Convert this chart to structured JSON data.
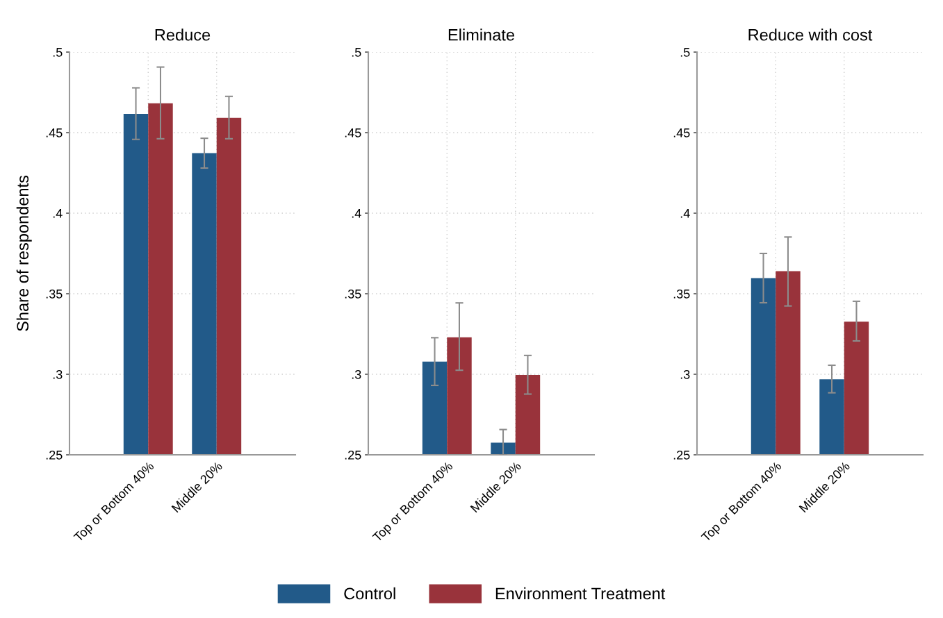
{
  "chart_data": [
    {
      "type": "bar",
      "title": "Reduce",
      "ylabel": "Share of respondents",
      "categories": [
        "Top or Bottom 40%",
        "Middle 20%"
      ],
      "ylim": [
        0.25,
        0.5
      ],
      "yticks": [
        {
          "value": 0.25,
          "label": ".25"
        },
        {
          "value": 0.3,
          "label": ".3"
        },
        {
          "value": 0.35,
          "label": ".35"
        },
        {
          "value": 0.4,
          "label": ".4"
        },
        {
          "value": 0.45,
          "label": ".45"
        },
        {
          "value": 0.5,
          "label": ".5"
        }
      ],
      "grid": true,
      "legend": "bottom",
      "series": [
        {
          "name": "Control",
          "color": "#225a89",
          "values": [
            0.4616,
            0.4373
          ],
          "errors": [
            [
              0.4458,
              0.4778
            ],
            [
              0.428,
              0.4465
            ]
          ]
        },
        {
          "name": "Environment Treatment",
          "color": "#99333b",
          "values": [
            0.4682,
            0.4592
          ],
          "errors": [
            [
              0.4462,
              0.4907
            ],
            [
              0.4462,
              0.4725
            ]
          ]
        }
      ]
    },
    {
      "type": "bar",
      "title": "Eliminate",
      "categories": [
        "Top or Bottom 40%",
        "Middle 20%"
      ],
      "ylim": [
        0.25,
        0.5
      ],
      "yticks": [
        {
          "value": 0.25,
          "label": ".25"
        },
        {
          "value": 0.3,
          "label": ".3"
        },
        {
          "value": 0.35,
          "label": ".35"
        },
        {
          "value": 0.4,
          "label": ".4"
        },
        {
          "value": 0.45,
          "label": ".45"
        },
        {
          "value": 0.5,
          "label": ".5"
        }
      ],
      "grid": true,
      "series": [
        {
          "color": "#225a89",
          "values": [
            0.3079,
            0.2575
          ],
          "errors": [
            [
              0.2931,
              0.3227
            ],
            [
              0.25,
              0.2657
            ]
          ]
        },
        {
          "color": "#99333b",
          "values": [
            0.323,
            0.2996
          ],
          "errors": [
            [
              0.3025,
              0.3443
            ],
            [
              0.2877,
              0.3117
            ]
          ]
        }
      ]
    },
    {
      "type": "bar",
      "title": "Reduce with cost",
      "categories": [
        "Top or Bottom 40%",
        "Middle 20%"
      ],
      "ylim": [
        0.25,
        0.5
      ],
      "yticks": [
        {
          "value": 0.25,
          "label": ".25"
        },
        {
          "value": 0.3,
          "label": ".3"
        },
        {
          "value": 0.35,
          "label": ".35"
        },
        {
          "value": 0.4,
          "label": ".4"
        },
        {
          "value": 0.45,
          "label": ".45"
        },
        {
          "value": 0.5,
          "label": ".5"
        }
      ],
      "grid": true,
      "series": [
        {
          "color": "#225a89",
          "values": [
            0.3597,
            0.2969
          ],
          "errors": [
            [
              0.3444,
              0.375
            ],
            [
              0.2885,
              0.3056
            ]
          ]
        },
        {
          "color": "#99333b",
          "values": [
            0.364,
            0.3327
          ],
          "errors": [
            [
              0.3424,
              0.3852
            ],
            [
              0.3207,
              0.3453
            ]
          ]
        }
      ]
    }
  ]
}
